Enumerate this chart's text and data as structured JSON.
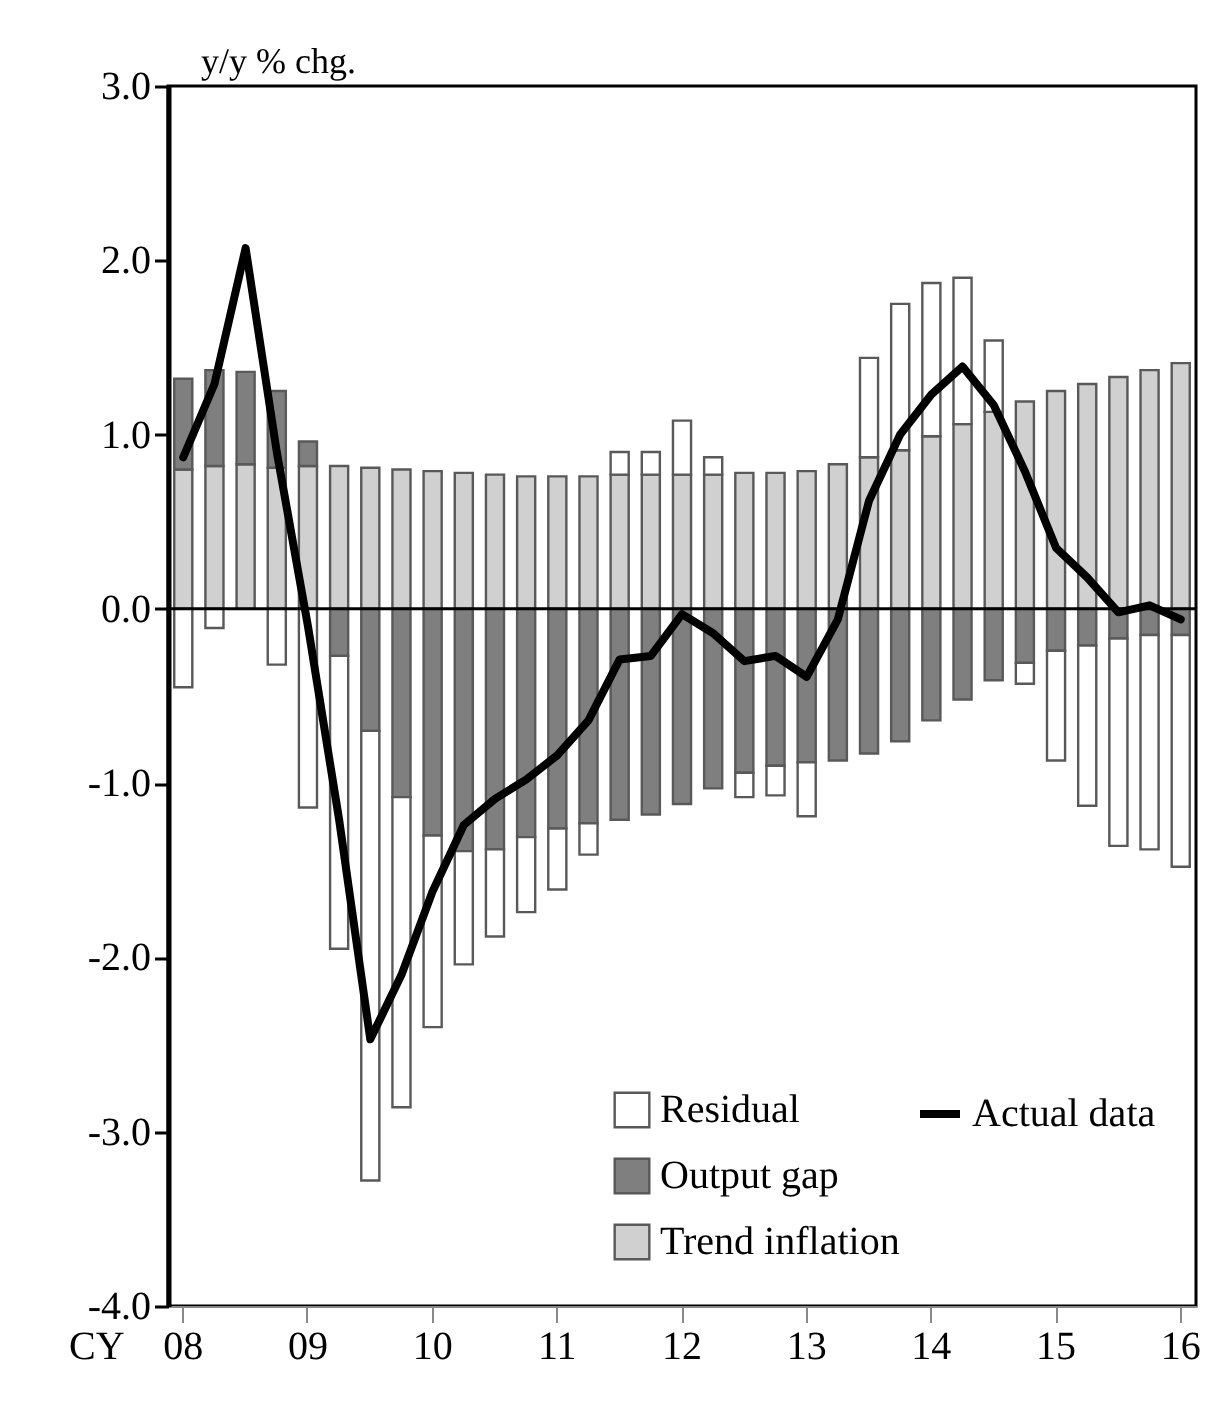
{
  "chart_data": {
    "type": "bar",
    "stacked": true,
    "ylabel": "y/y % chg.",
    "xlabel": "CY",
    "categories": [
      "08",
      null,
      null,
      null,
      "09",
      null,
      null,
      null,
      "10",
      null,
      null,
      null,
      "11",
      null,
      null,
      null,
      "12",
      null,
      null,
      null,
      "13",
      null,
      null,
      null,
      "14",
      null,
      null,
      null,
      "15",
      null,
      null,
      null,
      "16"
    ],
    "series": [
      {
        "name": "Trend inflation",
        "color": "#d0d0d0",
        "values": [
          0.8,
          0.82,
          0.83,
          0.81,
          0.82,
          0.82,
          0.81,
          0.8,
          0.79,
          0.78,
          0.77,
          0.76,
          0.76,
          0.76,
          0.77,
          0.77,
          0.77,
          0.77,
          0.78,
          0.78,
          0.79,
          0.83,
          0.87,
          0.91,
          0.99,
          1.06,
          1.13,
          1.19,
          1.25,
          1.29,
          1.33,
          1.37,
          1.41
        ]
      },
      {
        "name": "Output gap",
        "color": "#7f7f7f",
        "values": [
          0.52,
          0.55,
          0.53,
          0.44,
          0.14,
          -0.27,
          -0.7,
          -1.08,
          -1.3,
          -1.39,
          -1.38,
          -1.31,
          -1.26,
          -1.23,
          -1.21,
          -1.18,
          -1.12,
          -1.03,
          -0.94,
          -0.9,
          -0.88,
          -0.87,
          -0.83,
          -0.76,
          -0.64,
          -0.52,
          -0.41,
          -0.31,
          -0.24,
          -0.21,
          -0.17,
          -0.15,
          -0.15
        ]
      },
      {
        "name": "Residual",
        "color": "#ffffff",
        "values": [
          -0.45,
          -0.11,
          null,
          -0.32,
          -1.14,
          -1.68,
          -2.58,
          -1.78,
          -1.1,
          -0.65,
          -0.5,
          -0.43,
          -0.35,
          -0.18,
          0.13,
          0.13,
          0.31,
          0.1,
          -0.14,
          -0.17,
          -0.31,
          null,
          0.57,
          0.84,
          0.88,
          0.84,
          0.41,
          -0.12,
          -0.63,
          -0.92,
          -1.19,
          -1.23,
          -1.33
        ]
      },
      {
        "name": "Actual data",
        "type": "line",
        "color": "#000000",
        "values": [
          0.87,
          1.29,
          2.07,
          0.9,
          -0.1,
          -1.21,
          -2.47,
          -2.1,
          -1.62,
          -1.24,
          -1.09,
          -0.98,
          -0.84,
          -0.64,
          -0.29,
          -0.27,
          -0.03,
          -0.14,
          -0.3,
          -0.27,
          -0.39,
          -0.06,
          0.62,
          1.0,
          1.23,
          1.39,
          1.17,
          0.79,
          0.35,
          0.18,
          -0.02,
          0.02,
          -0.06
        ]
      }
    ],
    "ylim": [
      -4,
      3
    ],
    "yticks": [
      {
        "value": -4,
        "label": "-4.0"
      },
      {
        "value": -3,
        "label": "-3.0"
      },
      {
        "value": -2,
        "label": "-2.0"
      },
      {
        "value": -1,
        "label": "-1.0"
      },
      {
        "value": 0,
        "label": "0.0"
      },
      {
        "value": 1,
        "label": "1.0"
      },
      {
        "value": 2,
        "label": "2.0"
      },
      {
        "value": 3,
        "label": "3.0"
      }
    ],
    "ref_lines": [
      {
        "axis": "y",
        "value": 0,
        "color": "#000000"
      }
    ],
    "grid": false,
    "legend": "bottom right"
  }
}
